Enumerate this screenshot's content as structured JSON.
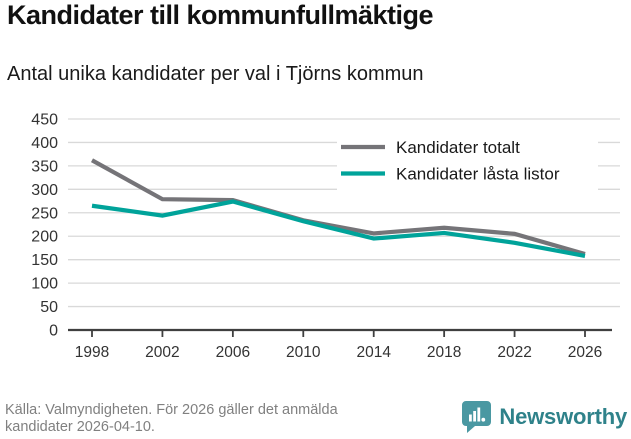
{
  "header": {
    "title": "Kandidater till kommunfullmäktige",
    "subtitle": "Antal unika kandidater per val i Tjörns kommun"
  },
  "chart_data": {
    "type": "line",
    "title": "Kandidater till kommunfullmäktige",
    "subtitle": "Antal unika kandidater per val i Tjörns kommun",
    "x": [
      1998,
      2002,
      2006,
      2010,
      2014,
      2018,
      2022,
      2026
    ],
    "x_tick_labels": [
      "1998",
      "2002",
      "2006",
      "2010",
      "2014",
      "2018",
      "2022",
      "2026"
    ],
    "series": [
      {
        "name": "Kandidater totalt",
        "color": "#757478",
        "values": [
          362,
          279,
          277,
          234,
          206,
          218,
          205,
          162
        ]
      },
      {
        "name": "Kandidater låsta listor",
        "color": "#00a39a",
        "values": [
          265,
          244,
          274,
          232,
          195,
          207,
          186,
          158
        ]
      }
    ],
    "xlabel": "",
    "ylabel": "",
    "ylim": [
      0,
      450
    ],
    "ytick_step": 50,
    "grid": "horizontal",
    "legend_position": "top-right"
  },
  "style": {
    "grid_color": "#d9d9d9",
    "axis_color": "#3f3f3f",
    "tick_label_color": "#333333",
    "legend_text_color": "#1a1a1a"
  },
  "footer": {
    "source": "Källa: Valmyndigheten. För 2026 gäller det anmälda kandidater 2026-04-10.",
    "brand": "Newsworthy",
    "brand_color": "#2f828a",
    "logo_color": "#4a98a2",
    "logo_icon": "bar-chart-speech-bubble"
  }
}
